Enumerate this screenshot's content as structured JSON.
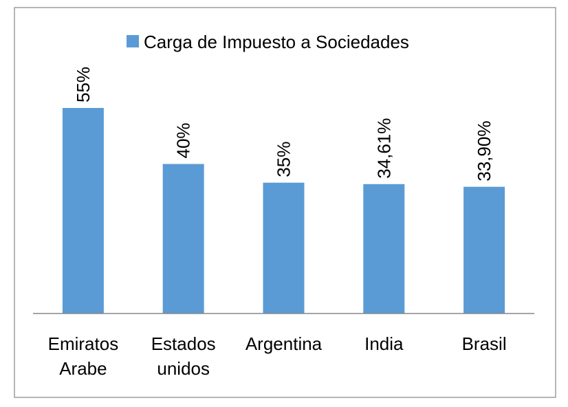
{
  "chart_data": {
    "type": "bar",
    "categories": [
      [
        "Emiratos",
        "Arabe"
      ],
      [
        "Estados",
        "unidos"
      ],
      [
        "Argentina"
      ],
      [
        "India"
      ],
      [
        "Brasil"
      ]
    ],
    "values": [
      55,
      40,
      35,
      34.61,
      33.9
    ],
    "data_labels": [
      "55%",
      "40%",
      "35%",
      "34,61%",
      "33,90%"
    ],
    "series": [
      {
        "name": "Carga de Impuesto a Sociedades",
        "color": "#5B9BD5"
      }
    ],
    "legend": {
      "placement": "top"
    },
    "ylim": [
      0,
      55
    ],
    "grid": false,
    "axis_color": "#868686",
    "border_color": "#868686"
  }
}
